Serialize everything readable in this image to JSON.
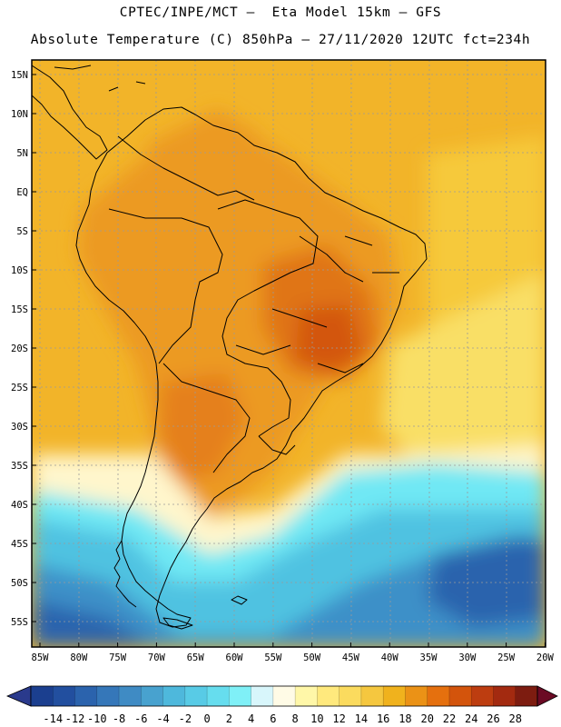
{
  "title_line1": "CPTEC/INPE/MCT –  Eta Model 15km – GFS",
  "title_line2": "Absolute Temperature (C) 850hPa – 27/11/2020 12UTC fct=234h",
  "lat_labels": [
    "15N",
    "10N",
    "5N",
    "EQ",
    "5S",
    "10S",
    "15S",
    "20S",
    "25S",
    "30S",
    "35S",
    "40S",
    "45S",
    "50S",
    "55S"
  ],
  "lon_labels": [
    "85W",
    "80W",
    "75W",
    "70W",
    "65W",
    "60W",
    "55W",
    "50W",
    "45W",
    "40W",
    "35W",
    "30W",
    "25W",
    "20W"
  ],
  "colorbar": {
    "ticks": [
      "-14",
      "-12",
      "-10",
      "-8",
      "-6",
      "-4",
      "-2",
      "0",
      "2",
      "4",
      "6",
      "8",
      "10",
      "12",
      "14",
      "16",
      "18",
      "20",
      "22",
      "24",
      "26",
      "28"
    ],
    "colors": [
      "#1b3f8f",
      "#224f9f",
      "#2b63ad",
      "#3577b9",
      "#3f8bc4",
      "#48a2cf",
      "#4eb8dc",
      "#58cbe6",
      "#66ddee",
      "#7ff0f7",
      "#d8f6fb",
      "#fffbe6",
      "#fff7a8",
      "#ffe97d",
      "#fbdb5e",
      "#f5c73f",
      "#f0b21d",
      "#eb9216",
      "#e5700e",
      "#d3540c",
      "#bd3d10",
      "#a32a10",
      "#7d1c10"
    ],
    "low_arrow_color": "#2a3a8c",
    "high_arrow_color": "#6b0a24"
  },
  "map_colors": {
    "warm_core": "#e07418",
    "warm": "#ec9a22",
    "warm_mid": "#f2b429",
    "warm_light": "#f6c93a",
    "mild": "#f9df66",
    "pale": "#fff6cc",
    "cold_light": "#6fe8f4",
    "cold": "#4fc2e1",
    "colder": "#3d90c8",
    "coldest": "#2b63ad"
  }
}
